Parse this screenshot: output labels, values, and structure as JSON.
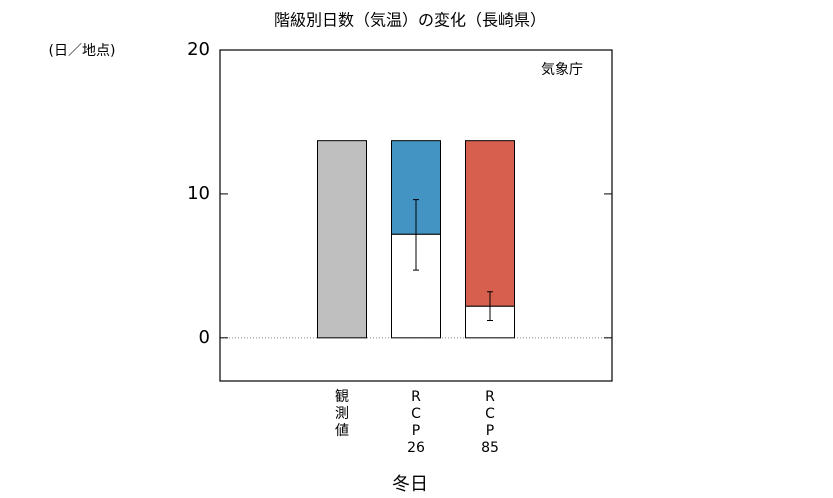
{
  "chart_data": {
    "type": "bar",
    "title": "階級別日数（気温）の変化（長崎県）",
    "y_unit_label": "(日／地点)",
    "annotation": "気象庁",
    "x_label": "冬日",
    "categories": [
      [
        "観",
        "測",
        "値"
      ],
      [
        "R",
        "C",
        "P",
        "26"
      ],
      [
        "R",
        "C",
        "P",
        "85"
      ]
    ],
    "series": [
      {
        "colors": [
          "#ffffff",
          "#ffffff",
          "#ffffff"
        ],
        "values": [
          null,
          7.2,
          2.2
        ]
      },
      {
        "colors": [
          "#bfbfbf",
          "#4393c3",
          "#d6604d"
        ],
        "values": [
          13.7,
          6.5,
          11.5
        ]
      }
    ],
    "error_low": [
      null,
      4.7,
      1.2
    ],
    "error_high": [
      null,
      9.6,
      3.2
    ],
    "ylim": [
      -3,
      20
    ],
    "yticks": [
      0,
      10,
      20
    ]
  }
}
